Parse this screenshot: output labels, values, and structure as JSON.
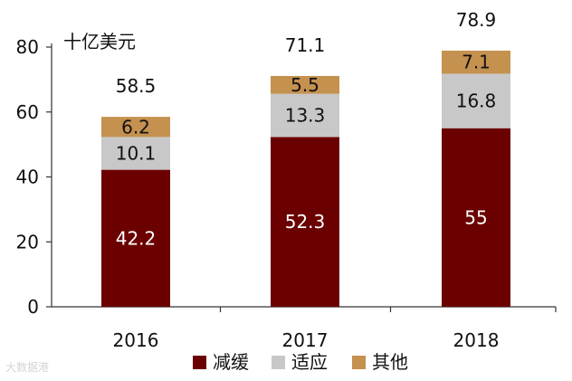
{
  "chart_data": {
    "type": "bar",
    "stacked": true,
    "unit_label": "十亿美元",
    "categories": [
      "2016",
      "2017",
      "2018"
    ],
    "series": [
      {
        "name": "减缓",
        "color": "#6b0000",
        "label_color": "#ffffff",
        "values": [
          42.2,
          52.3,
          55
        ]
      },
      {
        "name": "适应",
        "color": "#c8c8c8",
        "label_color": "#111111",
        "values": [
          10.1,
          13.3,
          16.8
        ]
      },
      {
        "name": "其他",
        "color": "#c4914f",
        "label_color": "#111111",
        "values": [
          6.2,
          5.5,
          7.1
        ]
      }
    ],
    "totals": [
      "58.5",
      "71.1",
      "78.9"
    ],
    "yticks": [
      0,
      20,
      40,
      60,
      80
    ],
    "ylim": [
      0,
      80
    ],
    "grid": false,
    "legend_position": "bottom",
    "watermark": "大数据港"
  }
}
